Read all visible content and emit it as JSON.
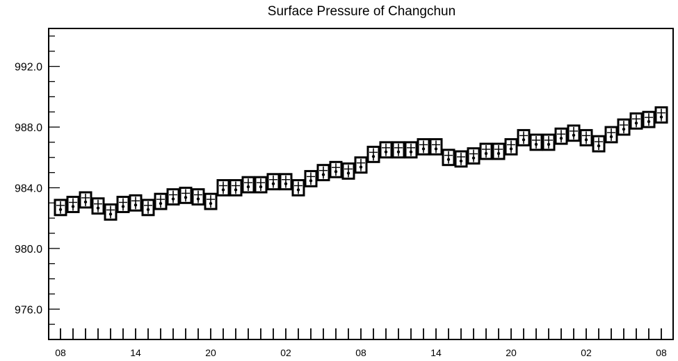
{
  "chart_data": {
    "type": "box",
    "title": "Surface Pressure of Changchun",
    "xlabel": "",
    "ylabel": "",
    "ylim": [
      974.0,
      994.5
    ],
    "yticks": [
      976.0,
      980.0,
      984.0,
      988.0,
      992.0
    ],
    "ytick_labels": [
      "976.0",
      "980.0",
      "984.0",
      "988.0",
      "992.0"
    ],
    "xticks_index": [
      0,
      6,
      12,
      18,
      24,
      30,
      36,
      42,
      48
    ],
    "xtick_labels": [
      "08",
      "14",
      "20",
      "02",
      "08",
      "14",
      "20",
      "02",
      "08"
    ],
    "n_times": 49,
    "series": [
      {
        "name": "",
        "median": [
          982.7,
          982.9,
          983.2,
          982.8,
          982.4,
          982.9,
          983.0,
          982.7,
          983.1,
          983.4,
          983.5,
          983.4,
          983.1,
          984.0,
          984.0,
          984.2,
          984.2,
          984.4,
          984.4,
          984.0,
          984.6,
          985.0,
          985.2,
          985.1,
          985.5,
          986.2,
          986.5,
          986.5,
          986.5,
          986.7,
          986.7,
          986.0,
          985.9,
          986.1,
          986.4,
          986.4,
          986.7,
          987.3,
          987.0,
          987.0,
          987.4,
          987.6,
          987.3,
          986.9,
          987.5,
          988.0,
          988.4,
          988.5,
          988.8
        ],
        "low": [
          982.2,
          982.4,
          982.7,
          982.3,
          981.9,
          982.4,
          982.5,
          982.2,
          982.6,
          982.9,
          983.0,
          982.9,
          982.6,
          983.5,
          983.5,
          983.7,
          983.7,
          983.9,
          983.9,
          983.5,
          984.1,
          984.5,
          984.7,
          984.6,
          985.0,
          985.7,
          986.0,
          986.0,
          986.0,
          986.2,
          986.2,
          985.5,
          985.4,
          985.6,
          985.9,
          985.9,
          986.2,
          986.8,
          986.5,
          986.5,
          986.9,
          987.1,
          986.8,
          986.4,
          987.0,
          987.5,
          987.9,
          988.0,
          988.3
        ],
        "high": [
          983.2,
          983.4,
          983.7,
          983.3,
          982.9,
          983.4,
          983.5,
          983.2,
          983.6,
          983.9,
          984.0,
          983.9,
          983.6,
          984.5,
          984.5,
          984.7,
          984.7,
          984.9,
          984.9,
          984.5,
          985.1,
          985.5,
          985.7,
          985.6,
          986.0,
          986.7,
          987.0,
          987.0,
          987.0,
          987.2,
          987.2,
          986.5,
          986.4,
          986.6,
          986.9,
          986.9,
          987.2,
          987.8,
          987.5,
          987.5,
          987.9,
          988.1,
          987.8,
          987.4,
          988.0,
          988.5,
          988.9,
          989.0,
          989.3
        ]
      }
    ]
  }
}
